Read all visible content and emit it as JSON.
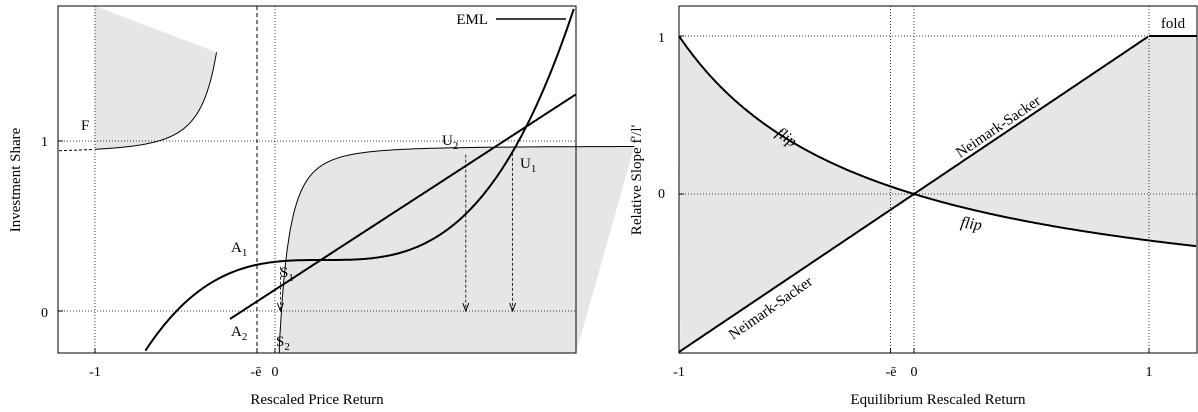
{
  "chart_data": [
    {
      "type": "line",
      "xlabel": "Rescaled Price Return",
      "ylabel": "Investment Share",
      "legend": {
        "entries": [
          "EML"
        ],
        "placement": "top-right"
      },
      "x_ticks": [
        "-1",
        "-ē",
        "0"
      ],
      "y_ticks": [
        "0",
        "1"
      ],
      "xlim": [
        -1.2,
        2.0
      ],
      "ylim": [
        -0.26,
        1.8
      ],
      "e_bar": -0.1,
      "series": [
        {
          "name": "EML",
          "kind": "line",
          "points": [
            [
              -1.2,
              -0.7
            ],
            [
              2.0,
              1.5
            ]
          ]
        }
      ],
      "annotations": [
        {
          "label": "F",
          "x": -1,
          "y": 1.1
        },
        {
          "label": "U",
          "sub": "2",
          "x": 1.16,
          "y": 0.93
        },
        {
          "label": "U",
          "sub": "1",
          "x": 1.45,
          "y": 0.92
        },
        {
          "label": "A",
          "sub": "1",
          "x": -0.1,
          "y": 0.3
        },
        {
          "label": "S",
          "sub": "1",
          "x": 0.04,
          "y": 0.3
        },
        {
          "label": "A",
          "sub": "2",
          "x": -0.1,
          "y": -0.1
        },
        {
          "label": "S",
          "sub": "2",
          "x": 0.0,
          "y": -0.1
        }
      ]
    },
    {
      "type": "line",
      "xlabel": "Equilibrium Rescaled Return",
      "ylabel": "Relative Slope f'/l'",
      "x_ticks": [
        "-1",
        "-ē",
        "0",
        "1"
      ],
      "y_ticks": [
        "0",
        "1"
      ],
      "xlim": [
        -1,
        1.2
      ],
      "ylim": [
        -1.1,
        1.1
      ],
      "e_bar": -0.1,
      "series": [
        {
          "name": "flip",
          "kind": "line"
        },
        {
          "name": "Neimark-Sacker",
          "kind": "line"
        },
        {
          "name": "fold",
          "kind": "line"
        }
      ],
      "annotations": [
        {
          "label": "flip",
          "x": -0.6,
          "y": 0.55
        },
        {
          "label": "Neimark-Sacker",
          "x": 0.45,
          "y": 0.45
        },
        {
          "label": "flip",
          "x": 0.3,
          "y": -0.27
        },
        {
          "label": "Neimark-Sacker",
          "x": -0.6,
          "y": -0.6
        },
        {
          "label": "fold",
          "x": 1.1,
          "y": 1.05
        }
      ]
    }
  ]
}
